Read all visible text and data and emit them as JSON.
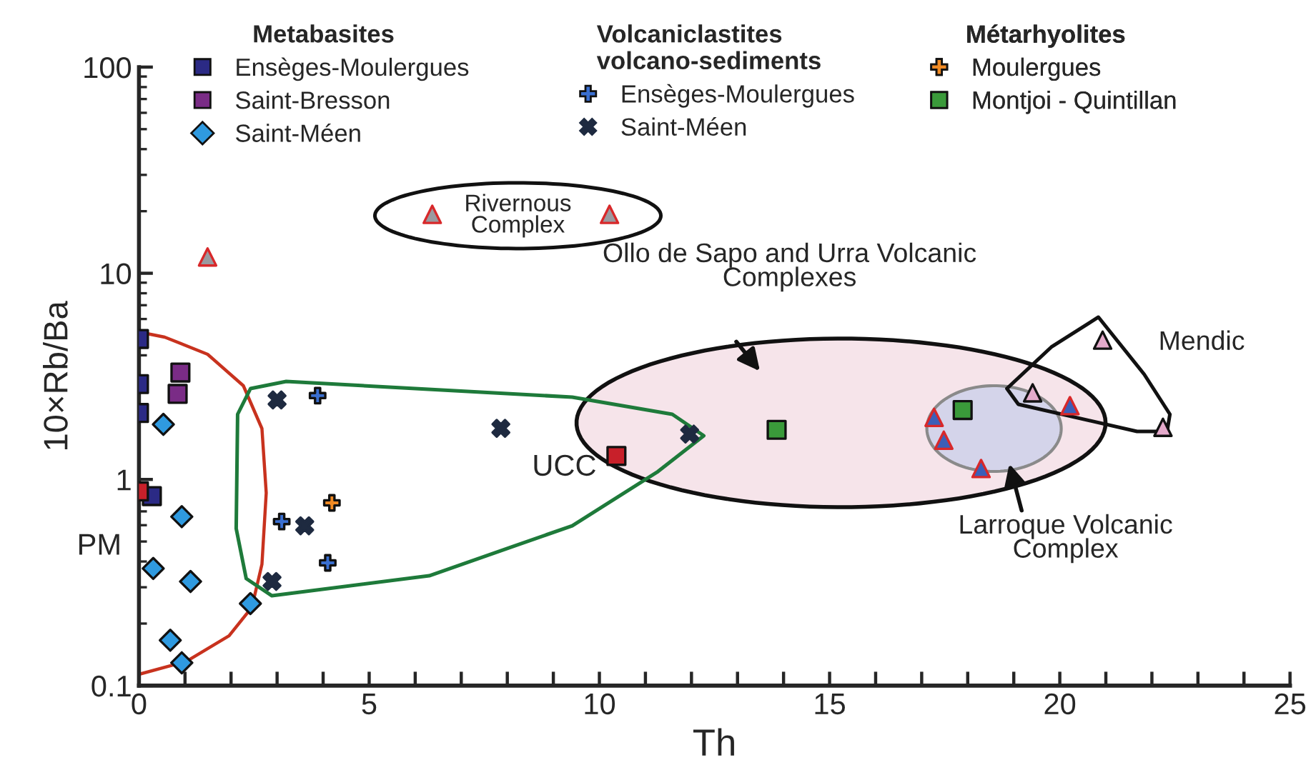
{
  "chart_data": {
    "type": "scatter",
    "xlabel": "Th",
    "ylabel": "10×Rb/Ba",
    "xlim": [
      0,
      25
    ],
    "ylim": [
      0.1,
      100
    ],
    "log": "y",
    "xticks": [
      0,
      {
        "value": 1,
        "label": null
      },
      {
        "value": 2,
        "label": null
      },
      {
        "value": 3,
        "label": null
      },
      {
        "value": 4,
        "label": null
      },
      5,
      {
        "value": 6,
        "label": null
      },
      {
        "value": 7,
        "label": null
      },
      {
        "value": 8,
        "label": null
      },
      {
        "value": 9,
        "label": null
      },
      10,
      {
        "value": 11,
        "label": null
      },
      {
        "value": 12,
        "label": null
      },
      {
        "value": 13,
        "label": null
      },
      {
        "value": 14,
        "label": null
      },
      15,
      {
        "value": 16,
        "label": null
      },
      {
        "value": 17,
        "label": null
      },
      {
        "value": 18,
        "label": null
      },
      {
        "value": 19,
        "label": null
      },
      20,
      {
        "value": 21,
        "label": null
      },
      {
        "value": 22,
        "label": null
      },
      {
        "value": 23,
        "label": null
      },
      {
        "value": 24,
        "label": null
      },
      25
    ],
    "yticks": [
      0.1,
      1,
      10,
      100
    ],
    "grid": false,
    "legend": "top",
    "legend_title": [
      "Metabasites",
      "Volcaniclastites\nvolcano-sediments",
      "Métarhyolites"
    ],
    "series": [
      {
        "name": "Ensèges-Moulergues",
        "marker": "square",
        "color": "#2b2a85",
        "x": [
          0,
          0,
          0,
          0.28
        ],
        "values": [
          4.8,
          2.9,
          2.1,
          0.83
        ]
      },
      {
        "name": "Saint-Bresson",
        "marker": "square",
        "color": "#7a2c86",
        "x": [
          0.9,
          0.84
        ],
        "values": [
          3.3,
          2.6
        ]
      },
      {
        "name": "Saint-Méen",
        "marker": "diamond",
        "color": "#2f9ae0",
        "x": [
          0.53,
          0.93,
          0.31,
          1.12,
          2.42,
          0.68,
          0.93
        ],
        "values": [
          1.85,
          0.66,
          0.37,
          0.32,
          0.25,
          0.166,
          0.129
        ]
      },
      {
        "name": "Ensèges-Moulergues",
        "marker": "plus",
        "color": "#3a6fd0",
        "x": [
          3.88,
          3.1,
          4.1
        ],
        "values": [
          2.55,
          0.625,
          0.394
        ]
      },
      {
        "name": "Saint-Méen",
        "marker": "x",
        "color": "#1e2a40",
        "x": [
          3.0,
          3.6,
          2.89,
          7.86,
          11.96
        ],
        "values": [
          2.43,
          0.596,
          0.32,
          1.77,
          1.66
        ]
      },
      {
        "name": "Moulergues",
        "marker": "plus",
        "color": "#f08a24",
        "x": [
          4.19
        ],
        "values": [
          0.77
        ]
      },
      {
        "name": "Montjoi - Quintillan",
        "marker": "square",
        "color": "#3a9a3a",
        "x": [
          13.85,
          17.89
        ],
        "values": [
          1.74,
          2.17
        ]
      },
      {
        "marker": "square",
        "color": "#c8202a",
        "x": [
          0,
          10.37
        ],
        "values": [
          0.875,
          1.3
        ]
      },
      {
        "marker": "triangle",
        "color": "#9a9aa0",
        "x": [
          1.49,
          6.37,
          10.22
        ],
        "values": [
          12.0,
          19.3,
          19.3
        ]
      },
      {
        "marker": "triangle",
        "color": "#3b5fb8",
        "x": [
          17.27,
          17.48,
          18.29,
          20.22
        ],
        "values": [
          2.0,
          1.55,
          1.13,
          2.28
        ]
      },
      {
        "marker": "triangle",
        "color": "#e4aacb",
        "x": [
          20.93,
          19.41,
          22.24
        ],
        "values": [
          4.74,
          2.63,
          1.79
        ]
      }
    ],
    "annotations": [
      {
        "text": "PM",
        "x": 0,
        "y": 0.875
      },
      {
        "text": "UCC",
        "x": 10.37,
        "y": 1.3
      },
      "Rivernous\nComplex",
      "Ollo de Sapo and Urra Volcanic\nComplexes",
      "Mendic",
      "Larroque Volcanic\nComplex"
    ]
  }
}
